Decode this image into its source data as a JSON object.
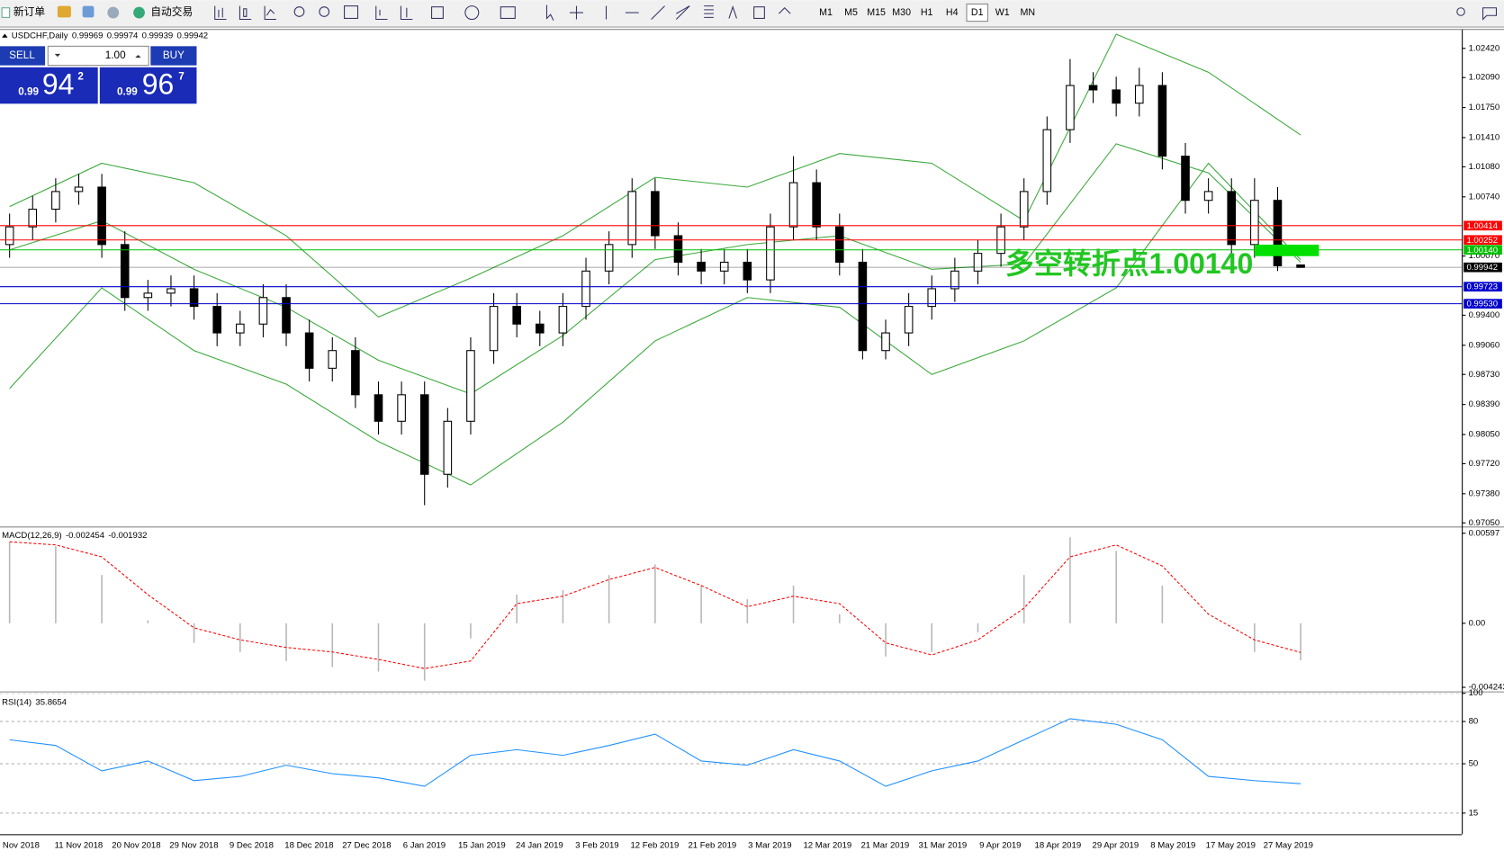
{
  "toolbar": {
    "new_order": "新订单",
    "auto_trading": "自动交易",
    "timeframes": [
      "M1",
      "M5",
      "M15",
      "M30",
      "H1",
      "H4",
      "D1",
      "W1",
      "MN"
    ],
    "active": "D1"
  },
  "trade_panel": {
    "sell": "SELL",
    "buy": "BUY",
    "lots": "1.00",
    "sell_price": {
      "big": "0.99",
      "pips": "94",
      "fraction": "2"
    },
    "buy_price": {
      "big": "0.99",
      "pips": "96",
      "fraction": "7"
    }
  },
  "chart_data": [
    {
      "type": "candlestick",
      "symbol": "USDCHF,Daily",
      "open": [
        1.002,
        1.004,
        1.006,
        1.008,
        1.0085,
        1.002,
        0.996,
        0.9965,
        0.997,
        0.995,
        0.992,
        0.993,
        0.996,
        0.992,
        0.988,
        0.99,
        0.985,
        0.982,
        0.985,
        0.976,
        0.982,
        0.99,
        0.995,
        0.993,
        0.992,
        0.995,
        0.999,
        1.002,
        1.008,
        1.003,
        1.0,
        0.999,
        1.0,
        0.998,
        1.004,
        1.009,
        1.004,
        1.0,
        0.99,
        0.992,
        0.995,
        0.997,
        0.999,
        1.001,
        1.004,
        1.008,
        1.015,
        1.02,
        1.0195,
        1.018,
        1.02,
        1.012,
        1.007,
        1.008,
        1.002,
        1.007,
        0.99969
      ],
      "high": [
        1.0055,
        1.0075,
        1.0095,
        1.01,
        1.01,
        1.0035,
        0.998,
        0.9985,
        0.9985,
        0.9965,
        0.9945,
        0.9975,
        0.9975,
        0.9935,
        0.9915,
        0.9915,
        0.9865,
        0.9865,
        0.9865,
        0.9835,
        0.9915,
        0.9965,
        0.9965,
        0.9945,
        0.9965,
        1.0005,
        1.0035,
        1.0095,
        1.0095,
        1.0045,
        1.0015,
        1.0015,
        1.0015,
        1.0055,
        1.012,
        1.0105,
        1.0055,
        1.0015,
        0.9935,
        0.9965,
        0.9985,
        1.0005,
        1.0025,
        1.0055,
        1.0095,
        1.0165,
        1.023,
        1.0215,
        1.021,
        1.022,
        1.0215,
        1.0135,
        1.0095,
        1.0095,
        1.0095,
        1.0085,
        0.99974
      ],
      "low": [
        1.0005,
        1.0025,
        1.0045,
        1.0065,
        1.0005,
        0.9945,
        0.9945,
        0.995,
        0.9935,
        0.9905,
        0.9905,
        0.9915,
        0.9905,
        0.9865,
        0.9865,
        0.9835,
        0.9805,
        0.9805,
        0.9725,
        0.9745,
        0.9805,
        0.9885,
        0.9915,
        0.9905,
        0.9905,
        0.9935,
        0.9975,
        1.0005,
        1.0015,
        0.9985,
        0.9975,
        0.9975,
        0.9965,
        0.9965,
        1.0025,
        1.0025,
        0.9985,
        0.989,
        0.989,
        0.9905,
        0.9935,
        0.9955,
        0.9975,
        0.9995,
        1.0025,
        1.0065,
        1.0135,
        1.018,
        1.0165,
        1.0165,
        1.0105,
        1.0055,
        1.0055,
        1.0005,
        1.0005,
        0.999,
        0.99939
      ],
      "close": [
        1.004,
        1.006,
        1.008,
        1.0085,
        1.002,
        0.996,
        0.9965,
        0.997,
        0.995,
        0.992,
        0.993,
        0.996,
        0.992,
        0.988,
        0.99,
        0.985,
        0.982,
        0.985,
        0.976,
        0.982,
        0.99,
        0.995,
        0.993,
        0.992,
        0.995,
        0.999,
        1.002,
        1.008,
        1.003,
        1.0,
        0.999,
        1.0,
        0.998,
        1.004,
        1.009,
        1.004,
        1.0,
        0.99,
        0.992,
        0.995,
        0.997,
        0.999,
        1.001,
        1.004,
        1.008,
        1.015,
        1.02,
        1.0195,
        1.018,
        1.02,
        1.012,
        1.007,
        1.008,
        1.002,
        1.007,
        0.9996,
        0.99942
      ],
      "up_color": "#ffffff",
      "down_color": "#000000",
      "bands": {
        "color": "#3aa83a",
        "x": [
          0,
          4,
          8,
          12,
          16,
          20,
          24,
          28,
          32,
          36,
          40,
          44,
          48,
          52,
          56
        ],
        "upper": [
          1.0063,
          1.0112,
          1.009,
          1.003,
          0.9938,
          0.9982,
          1.003,
          1.0096,
          1.0085,
          1.0123,
          1.0112,
          1.0047,
          1.0258,
          1.0215,
          1.0144
        ],
        "middle": [
          1.0014,
          1.0047,
          0.9992,
          0.9949,
          0.9889,
          0.9851,
          0.9917,
          1.0003,
          1.002,
          1.003,
          0.9992,
          0.9998,
          1.0134,
          1.0101,
          1.0
        ],
        "lower": [
          0.9857,
          0.9971,
          0.99,
          0.9862,
          0.9797,
          0.9748,
          0.9819,
          0.9911,
          0.996,
          0.9949,
          0.9873,
          0.9911,
          0.9971,
          1.0112,
          1.0003
        ]
      },
      "levels": [
        {
          "value": 1.00414,
          "color": "#ff0000"
        },
        {
          "value": 1.00252,
          "color": "#ff0000"
        },
        {
          "value": 1.0014,
          "color": "#00c000",
          "label": "1.00140"
        },
        {
          "value": 0.99942,
          "color": "#000000"
        },
        {
          "value": 0.99723,
          "color": "#0000cc"
        },
        {
          "value": 0.9953,
          "color": "#0000cc",
          "label": "0.99530"
        }
      ],
      "annotation": "多空转折点1.00140",
      "ylim": [
        0.9702,
        1.0264
      ],
      "yticks": [
        {
          "value": 1.0242,
          "label": "1.02420"
        },
        {
          "value": 1.0209,
          "label": "1.02090"
        },
        {
          "value": 1.0175,
          "label": "1.01750"
        },
        {
          "value": 1.0141,
          "label": "1.01410"
        },
        {
          "value": 1.0108,
          "label": "1.01080"
        },
        {
          "value": 1.0074,
          "label": "1.00740"
        },
        {
          "value": 1.0007,
          "label": "1.00070"
        },
        {
          "value": 0.994,
          "label": "0.99400"
        },
        {
          "value": 0.9906,
          "label": "0.99060"
        },
        {
          "value": 0.9873,
          "label": "0.98730"
        },
        {
          "value": 0.9839,
          "label": "0.98390"
        },
        {
          "value": 0.9805,
          "label": "0.98050"
        },
        {
          "value": 0.9772,
          "label": "0.97720"
        },
        {
          "value": 0.9738,
          "label": "0.97380"
        },
        {
          "value": 0.9705,
          "label": "0.97050"
        }
      ],
      "x_labels": [
        "Nov 2018",
        "11 Nov 2018",
        "20 Nov 2018",
        "29 Nov 2018",
        "9 Dec 2018",
        "18 Dec 2018",
        "27 Dec 2018",
        "6 Jan 2019",
        "15 Jan 2019",
        "24 Jan 2019",
        "3 Feb 2019",
        "12 Feb 2019",
        "21 Feb 2019",
        "3 Mar 2019",
        "12 Mar 2019",
        "21 Mar 2019",
        "31 Mar 2019",
        "9 Apr 2019",
        "18 Apr 2019",
        "29 Apr 2019",
        "8 May 2019",
        "17 May 2019",
        "27 May 2019"
      ]
    },
    {
      "type": "macd",
      "title": "MACD(12,26,9)",
      "x": [
        0,
        2,
        4,
        6,
        8,
        10,
        12,
        14,
        16,
        18,
        20,
        22,
        24,
        26,
        28,
        30,
        32,
        34,
        36,
        38,
        40,
        42,
        44,
        46,
        48,
        50,
        52,
        54,
        56
      ],
      "histogram": [
        0.0054,
        0.0051,
        0.0032,
        0.0002,
        -0.0013,
        -0.0019,
        -0.0025,
        -0.0029,
        -0.0032,
        -0.0038,
        -0.001,
        0.0019,
        0.0022,
        0.0032,
        0.0039,
        0.0025,
        0.0016,
        0.0025,
        0.0006,
        -0.0022,
        -0.0019,
        -0.0006,
        0.0032,
        0.0057,
        0.0048,
        0.0025,
        0.0,
        -0.0019,
        -0.002454
      ],
      "signal": [
        0.0054,
        0.0052,
        0.0044,
        0.0019,
        -0.0003,
        -0.0011,
        -0.0016,
        -0.0019,
        -0.0024,
        -0.003,
        -0.0025,
        0.0013,
        0.0018,
        0.0029,
        0.0037,
        0.0025,
        0.0011,
        0.0018,
        0.0013,
        -0.0013,
        -0.0021,
        -0.0011,
        0.001,
        0.0044,
        0.0052,
        0.0038,
        0.0006,
        -0.0011,
        -0.001932
      ],
      "histogram_color": "#b8b8b8",
      "signal_color": "#ff0000",
      "ylim": [
        -0.00445,
        0.00629
      ],
      "yticks": [
        0.00597,
        {
          "value": 0,
          "label": "0.00"
        },
        -0.004243
      ]
    },
    {
      "type": "line",
      "title": "RSI(14)",
      "x": [
        0,
        2,
        4,
        6,
        8,
        10,
        12,
        14,
        16,
        18,
        20,
        22,
        24,
        26,
        28,
        30,
        32,
        34,
        36,
        38,
        40,
        42,
        44,
        46,
        48,
        50,
        52,
        54,
        56
      ],
      "values": [
        67,
        63,
        45,
        52,
        38,
        41,
        49,
        43,
        40,
        34,
        56,
        60,
        56,
        63,
        71,
        52,
        49,
        60,
        52,
        34,
        45,
        52,
        67,
        82,
        78,
        67,
        41,
        38,
        35.8654
      ],
      "color": "#1e90ff",
      "grid": true,
      "ylim": [
        0,
        100
      ],
      "yticks": [
        100,
        80,
        50,
        15
      ]
    }
  ]
}
